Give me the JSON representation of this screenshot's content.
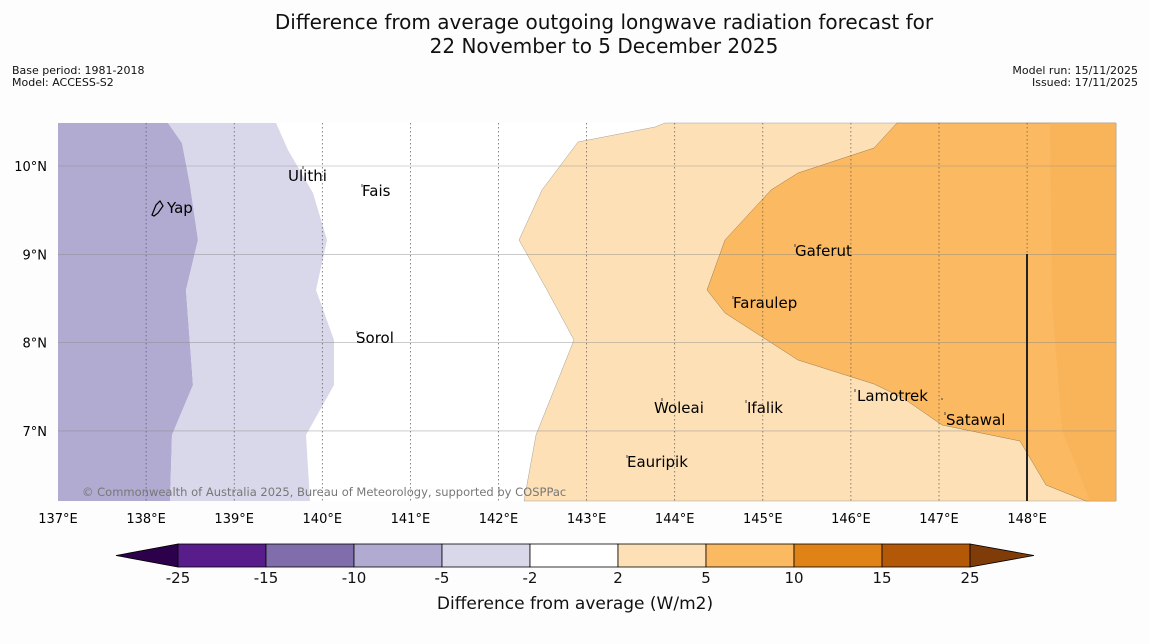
{
  "title_line1": "Difference from average outgoing longwave radiation forecast for",
  "title_line2": "22 November to 5 December 2025",
  "base_period": "Base period: 1981-2018",
  "model": "Model: ACCESS-S2",
  "model_run": "Model run: 15/11/2025",
  "issued": "Issued: 17/11/2025",
  "copyright": "© Commonwealth of Australia 2025, Bureau of Meteorology, supported by COSPPac",
  "lon_ticks": [
    "137°E",
    "138°E",
    "139°E",
    "140°E",
    "141°E",
    "142°E",
    "143°E",
    "144°E",
    "145°E",
    "146°E",
    "147°E",
    "148°E"
  ],
  "lat_ticks": [
    "10°N",
    "9°N",
    "8°N",
    "7°N"
  ],
  "places": [
    {
      "name": "Ulithi",
      "lon": 139.72,
      "lat": 9.97
    },
    {
      "name": "Fais",
      "lon": 140.43,
      "lat": 9.77
    },
    {
      "name": "Yap",
      "lon": 138.12,
      "lat": 9.52
    },
    {
      "name": "Gaferut",
      "lon": 145.33,
      "lat": 9.1
    },
    {
      "name": "Faraulep",
      "lon": 144.6,
      "lat": 8.52
    },
    {
      "name": "Sorol",
      "lon": 140.38,
      "lat": 8.08
    },
    {
      "name": "Lamotrek",
      "lon": 146.05,
      "lat": 7.45
    },
    {
      "name": "Woleai",
      "lon": 143.9,
      "lat": 7.35
    },
    {
      "name": "Ifalik",
      "lon": 144.9,
      "lat": 7.35
    },
    {
      "name": "Satawal",
      "lon": 147.03,
      "lat": 7.2
    },
    {
      "name": "Eauripik",
      "lon": 143.43,
      "lat": 6.68
    }
  ],
  "colorbar": {
    "boundaries": [
      "-25",
      "-15",
      "-10",
      "-5",
      "-2",
      "2",
      "5",
      "10",
      "15",
      "25"
    ],
    "colors": [
      "#581d8a",
      "#7f6eab",
      "#b1abd2",
      "#d8d8ea",
      "#ffffff",
      "#fde0b6",
      "#fbb962",
      "#e08316",
      "#b35806"
    ],
    "under_color": "#2d004b",
    "over_color": "#7f3b08",
    "label": "Difference from average (W/m2)"
  },
  "field_colors": {
    "minus10_to_minus5": "#b1abd2",
    "minus5_to_minus2": "#d8d8ea",
    "minus2_to_2": "#ffffff",
    "plus2_to_5": "#fde0b6",
    "plus5_to_10": "#fbb962"
  }
}
